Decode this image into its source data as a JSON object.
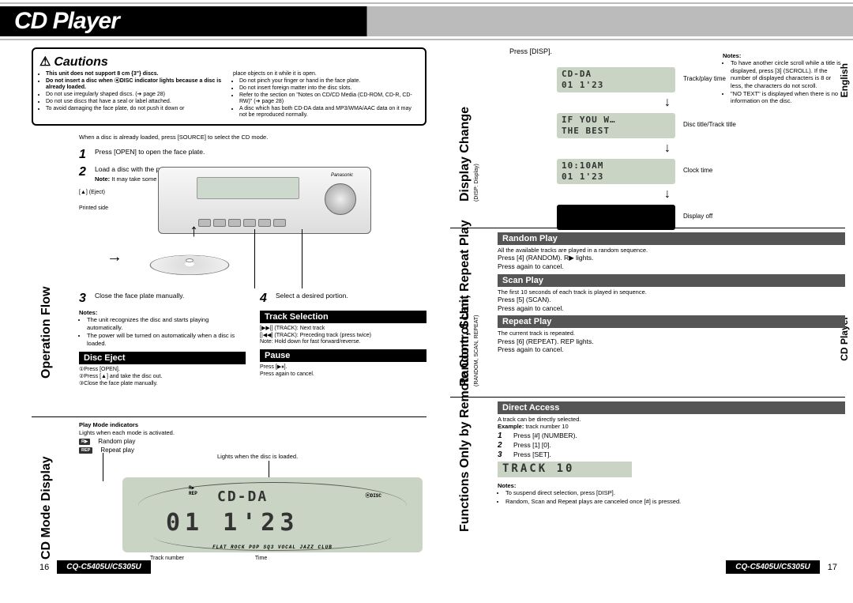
{
  "title": "CD Player",
  "model": "CQ-C5405U/C5305U",
  "page_left_no": "16",
  "page_right_no": "17",
  "side_tabs": {
    "lang": "English",
    "section": "CD Player"
  },
  "cautions": {
    "heading": "Cautions",
    "left": [
      "This unit does not support 8 cm {3\"} discs.",
      "Do not insert a disc when ⦿DISC indicator lights because a disc is already loaded.",
      "Do not use irregularly shaped discs. (➔ page 28)",
      "Do not use discs that have a seal or label attached.",
      "To avoid damaging the face plate, do not push it down or"
    ],
    "left_bold_idx": [
      0,
      1
    ],
    "right": [
      "place objects on it while it is open.",
      "Do not pinch your finger or hand in the face plate.",
      "Do not insert foreign matter into the disc slots.",
      "Refer to the section on \"Notes on CD/CD Media (CD-ROM, CD-R, CD-RW)\" (➔ page 28)",
      "A disc which has both CD-DA data and MP3/WMA/AAC data on it may not be reproduced normally."
    ]
  },
  "operation_flow": {
    "label": "Operation Flow",
    "intro": "When a disc is already loaded, press [SOURCE] to select the CD mode.",
    "steps": {
      "s1": "Press [OPEN] to open the face plate.",
      "s2": "Load a disc with the printed side facing up.",
      "s2_note": "Note: It may take some time to start playing.",
      "eject": "[▲] (Eject)",
      "printed": "Printed side",
      "s3": "Close the face plate manually.",
      "s4": "Select a desired portion."
    },
    "notes_h": "Notes:",
    "notes": [
      "The unit recognizes the disc and starts playing automatically.",
      "The power will be turned on automatically when a disc is loaded."
    ],
    "track_sel": {
      "h": "Track Selection",
      "l1": "[▶▶|] (TRACK): Next track",
      "l2": "[|◀◀] (TRACK): Preceding track (press twice)",
      "l3": "Note: Hold down for fast forward/reverse."
    },
    "disc_eject": {
      "h": "Disc Eject",
      "l1": "①Press [OPEN].",
      "l2": "②Press [▲] and take the disc out.",
      "l3": "③Close the face plate manually."
    },
    "pause": {
      "h": "Pause",
      "l1": "Press [▶⏸].",
      "l2": "Press again to cancel."
    }
  },
  "cd_mode": {
    "label": "CD Mode Display",
    "pm_h": "Play Mode indicators",
    "pm_sub": "Lights when each mode is activated.",
    "pm_items": [
      {
        "chip": "R▶",
        "txt": "Random play"
      },
      {
        "chip": "REP",
        "txt": "Repeat play"
      }
    ],
    "load_txt": "Lights when the disc is loaded.",
    "lcd_top": "CD-DA",
    "lcd_main": "01  1'23",
    "callout_track": "Track number",
    "callout_time": "Time",
    "ind_disc": "⦿DISC",
    "eq_row": "FLAT ROCK POP  SQ3  VOCAL JAZZ CLUB"
  },
  "display_change": {
    "label": "Display Change",
    "sub": "(DISP: Display)",
    "press": "Press [DISP].",
    "screens": [
      {
        "l1": "   CD-DA   ",
        "l2": "01   1'23",
        "cap": "Track/play time"
      },
      {
        "l1": " IF  YOU W…",
        "l2": "THE  BEST",
        "cap": "Disc title/Track title"
      },
      {
        "l1": "    10:10AM",
        "l2": "01   1'23",
        "cap": "Clock time"
      },
      {
        "l1": "",
        "l2": "",
        "cap": "Display off",
        "off": true
      }
    ]
  },
  "rsr": {
    "label": "Random, Scan, Repeat Play",
    "sub": "(RANDOM, SCAN, REPEAT)",
    "random": {
      "h": "Random Play",
      "d": "All the available tracks are played in a random sequence.",
      "p1": "Press [4] (RANDOM). R▶ lights.",
      "p2": "Press again to cancel."
    },
    "scan": {
      "h": "Scan Play",
      "d": "The first 10 seconds of each track is played in sequence.",
      "p1": "Press [5] (SCAN).",
      "p2": "Press again to cancel."
    },
    "repeat": {
      "h": "Repeat Play",
      "d": "The current track is repeated.",
      "p1": "Press [6] (REPEAT). REP lights.",
      "p2": "Press again to cancel."
    }
  },
  "remote": {
    "label": "Functions Only by Remote Control Unit",
    "direct": {
      "h": "Direct Access",
      "d": "A track can be directly selected.",
      "ex": "Example: track number 10",
      "st1": "Press [#] (NUMBER).",
      "st2": "Press [1] [0].",
      "st3": "Press [SET].",
      "lcd": "TRACK  10"
    },
    "notes_h": "Notes:",
    "notes": [
      "To suspend direct selection, press [DISP].",
      "Random, Scan and Repeat plays are canceled once [#] is pressed."
    ]
  },
  "right_notes": {
    "h": "Notes:",
    "items": [
      "To have another circle scroll while a title is displayed, press [3] (SCROLL). If the number of displayed characters is 8 or less, the characters do not scroll.",
      "\"NO TEXT\" is displayed when there is no information on the disc."
    ]
  },
  "colors": {
    "lcd": "#c9d4c4"
  }
}
